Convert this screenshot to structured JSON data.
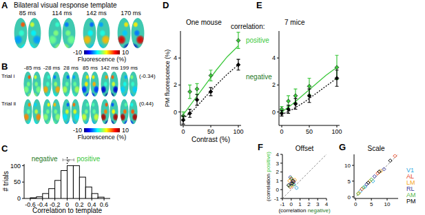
{
  "chart_data": [
    {
      "panel": "A",
      "type": "image",
      "title": "Bilateral visual response template",
      "frames": [
        "85 ms",
        "114 ms",
        "142 ms",
        "170 ms"
      ],
      "colorbar": {
        "range": [
          -10,
          10
        ],
        "ticks": [
          -10,
          10
        ],
        "label": "Fluorescence (%)"
      }
    },
    {
      "panel": "B",
      "type": "image",
      "frames": [
        "-85 ms",
        "-28 ms",
        "28 ms",
        "85 ms",
        "142 ms",
        "199 ms"
      ],
      "rows": [
        {
          "name": "Trial i",
          "correlation": -0.34,
          "correlation_label": "(-0.34)"
        },
        {
          "name": "Trial ii",
          "correlation": 0.44,
          "correlation_label": "(0.44)"
        }
      ],
      "colorbar": {
        "range": [
          -10,
          10
        ],
        "ticks": [
          -10,
          10
        ],
        "label": "Fluorescence (%)"
      }
    },
    {
      "panel": "C",
      "type": "histogram",
      "x_label": "Correlation to template",
      "y_label": "# trials",
      "bins": [
        -0.6,
        -0.5,
        -0.4,
        -0.3,
        -0.2,
        -0.1,
        0,
        0.1,
        0.2,
        0.3,
        0.4,
        0.5,
        0.6
      ],
      "counts": [
        2,
        5,
        15,
        30,
        55,
        85,
        100,
        100,
        65,
        35,
        15,
        4
      ],
      "color": "#ffffff",
      "xlim": [
        -0.7,
        0.7
      ],
      "ylim": [
        0,
        105
      ],
      "xticks": [
        -0.6,
        -0.4,
        -0.2,
        0,
        0.2,
        0.4,
        0.6
      ],
      "yticks": [
        0,
        50,
        100
      ],
      "reference_line": 0,
      "mean": 0.02,
      "mean_error": 0.09,
      "annotations": [
        {
          "text": "negative",
          "color": "#1f7a1f"
        },
        {
          "text": "positive",
          "color": "#3cc83c"
        }
      ]
    },
    {
      "panel": "D",
      "type": "line",
      "title": "One mouse",
      "x_label": "Contrast (%)",
      "y_label": "PM fluorescence (%)",
      "legend_title": "correlation:",
      "legend": "right",
      "marker": "diamond",
      "x": [
        0,
        12,
        25,
        50,
        100
      ],
      "xlim": [
        -5,
        105
      ],
      "ylim": [
        -1,
        6
      ],
      "xticks": [
        0,
        50,
        100
      ],
      "yticks": [
        0,
        2,
        4
      ],
      "series": [
        {
          "name": "positive",
          "color": "#3cc83c",
          "values": [
            -0.3,
            1.5,
            1.7,
            2.7,
            5.3
          ],
          "errors": [
            0.3,
            0.5,
            0.4,
            0.4,
            0.6
          ]
        },
        {
          "name": "negative",
          "color": "#000000",
          "values": [
            -0.6,
            -0.1,
            0.9,
            1.5,
            3.5
          ],
          "errors": [
            0.3,
            0.3,
            0.4,
            0.3,
            0.4
          ]
        }
      ],
      "fits": [
        {
          "color": "#3cc83c",
          "line_style": "solid",
          "x": [
            0,
            20,
            40,
            60,
            80,
            100
          ],
          "values": [
            -0.2,
            0.9,
            2.0,
            3.1,
            4.1,
            4.9
          ]
        },
        {
          "color": "#000000",
          "line_style": "dotted",
          "x": [
            0,
            20,
            40,
            60,
            80,
            100
          ],
          "values": [
            -0.5,
            0.2,
            1.1,
            2.0,
            2.8,
            3.5
          ]
        }
      ]
    },
    {
      "panel": "E",
      "type": "line",
      "title": "7 mice",
      "marker": "diamond",
      "x": [
        0,
        12,
        25,
        50,
        100
      ],
      "xlim": [
        -5,
        105
      ],
      "ylim": [
        -1,
        6
      ],
      "xticks": [
        0,
        50,
        100
      ],
      "yticks": [
        0,
        2,
        4
      ],
      "series": [
        {
          "name": "positive",
          "color": "#3cc83c",
          "values": [
            0.2,
            0.8,
            1.2,
            1.9,
            3.3
          ],
          "errors": [
            0.2,
            0.4,
            0.5,
            0.6,
            0.9
          ]
        },
        {
          "name": "negative",
          "color": "#000000",
          "values": [
            -0.1,
            0.2,
            0.6,
            1.2,
            2.5
          ],
          "errors": [
            0.2,
            0.3,
            0.4,
            0.5,
            0.6
          ]
        }
      ],
      "fits": [
        {
          "color": "#3cc83c",
          "line_style": "solid",
          "x": [
            0,
            20,
            40,
            60,
            80,
            100
          ],
          "values": [
            0.0,
            0.6,
            1.3,
            2.0,
            2.7,
            3.3
          ]
        },
        {
          "color": "#000000",
          "line_style": "dotted",
          "x": [
            0,
            20,
            40,
            60,
            80,
            100
          ],
          "values": [
            -0.2,
            0.2,
            0.7,
            1.3,
            1.9,
            2.5
          ]
        }
      ]
    },
    {
      "panel": "F",
      "type": "scatter",
      "title": "Offset",
      "x_label": "(correlation negative)",
      "y_label": "(correlation positive)",
      "marker": "diamond",
      "xlim": [
        -1,
        4
      ],
      "ylim": [
        -1,
        4
      ],
      "xticks": [
        -1,
        0,
        1,
        2,
        3,
        4
      ],
      "yticks": [
        -1,
        0,
        1,
        2,
        3,
        4
      ],
      "series": [
        {
          "color": "#2aa7e0",
          "x": [
            0.3,
            0.6,
            0.1
          ],
          "values": [
            0.6,
            0.2,
            0.9
          ]
        },
        {
          "color": "#e8401c",
          "x": [
            0.0,
            0.2,
            -0.1
          ],
          "values": [
            1.2,
            0.8,
            0.3
          ]
        },
        {
          "color": "#f5a623",
          "x": [
            -0.2,
            0.4,
            0.1
          ],
          "values": [
            1.0,
            1.1,
            0.5
          ]
        },
        {
          "color": "#3a3a9a",
          "x": [
            0.0,
            -0.1,
            0.3
          ],
          "values": [
            0.7,
            1.4,
            0.9
          ]
        },
        {
          "color": "#5ab84a",
          "x": [
            -0.2,
            0.2,
            0.0
          ],
          "values": [
            0.4,
            0.6,
            1.3
          ]
        },
        {
          "color": "#000000",
          "x": [
            -0.3,
            0.1,
            0.2
          ],
          "values": [
            0.5,
            0.7,
            1.0
          ]
        }
      ]
    },
    {
      "panel": "G",
      "type": "scatter",
      "title": "Scale",
      "legend": "right",
      "marker": "diamond",
      "xlim": [
        -0.5,
        13.5
      ],
      "ylim": [
        -0.5,
        13.5
      ],
      "xticks": [
        0,
        5,
        10
      ],
      "yticks": [
        0,
        5,
        10
      ],
      "series": [
        {
          "name": "V1",
          "color": "#2aa7e0",
          "x": [
            1.5,
            3.0,
            5.5
          ],
          "values": [
            1.8,
            3.2,
            5.0
          ]
        },
        {
          "name": "AL",
          "color": "#e8401c",
          "x": [
            2.0,
            7.0,
            12.5
          ],
          "values": [
            2.5,
            7.5,
            13.0
          ]
        },
        {
          "name": "LM",
          "color": "#f5a623",
          "x": [
            1.0,
            4.5,
            8.0
          ],
          "values": [
            1.2,
            5.0,
            8.2
          ]
        },
        {
          "name": "RL",
          "color": "#3a3a9a",
          "x": [
            3.5,
            6.0,
            9.0
          ],
          "values": [
            4.0,
            6.5,
            8.8
          ]
        },
        {
          "name": "AM",
          "color": "#5ab84a",
          "x": [
            0.8,
            2.5,
            5.0
          ],
          "values": [
            1.0,
            3.0,
            5.5
          ]
        },
        {
          "name": "PM",
          "color": "#000000",
          "x": [
            4.0,
            7.5,
            11.0
          ],
          "values": [
            4.5,
            8.0,
            11.5
          ]
        }
      ]
    }
  ]
}
